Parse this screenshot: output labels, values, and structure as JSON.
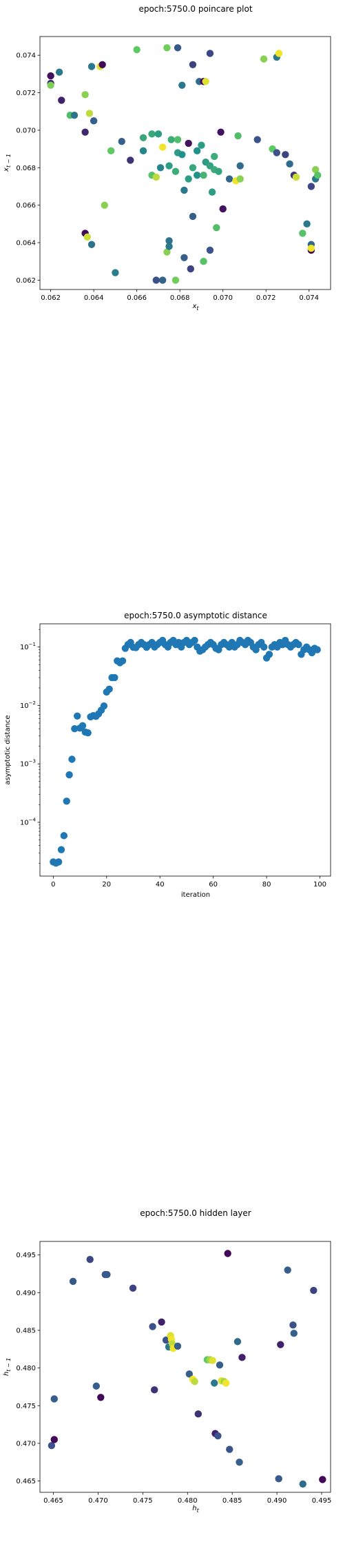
{
  "chart_data": [
    {
      "type": "scatter",
      "title": "epoch:5750.0 poincare plot",
      "xlabel": "x_t",
      "ylabel": "x_{t-1}",
      "xlim": [
        0.0615,
        0.075
      ],
      "ylim": [
        0.0615,
        0.075
      ],
      "xticks": [
        "0.062",
        "0.064",
        "0.066",
        "0.068",
        "0.070",
        "0.072",
        "0.074"
      ],
      "yticks": [
        "0.062",
        "0.064",
        "0.066",
        "0.068",
        "0.070",
        "0.072",
        "0.074"
      ],
      "colormap": "viridis",
      "points": [
        {
          "x": 0.062,
          "y": 0.0729,
          "c": 0.05
        },
        {
          "x": 0.062,
          "y": 0.0725,
          "c": 0.12
        },
        {
          "x": 0.062,
          "y": 0.0724,
          "c": 0.8
        },
        {
          "x": 0.0624,
          "y": 0.0731,
          "c": 0.4
        },
        {
          "x": 0.0625,
          "y": 0.0716,
          "c": 0.1
        },
        {
          "x": 0.0629,
          "y": 0.0708,
          "c": 0.7
        },
        {
          "x": 0.0631,
          "y": 0.0708,
          "c": 0.38
        },
        {
          "x": 0.0636,
          "y": 0.0719,
          "c": 0.82
        },
        {
          "x": 0.0636,
          "y": 0.0699,
          "c": 0.12
        },
        {
          "x": 0.0638,
          "y": 0.0709,
          "c": 0.9
        },
        {
          "x": 0.0639,
          "y": 0.0734,
          "c": 0.4
        },
        {
          "x": 0.064,
          "y": 0.0705,
          "c": 0.3
        },
        {
          "x": 0.0643,
          "y": 0.0734,
          "c": 0.95
        },
        {
          "x": 0.0644,
          "y": 0.0735,
          "c": 0.02
        },
        {
          "x": 0.0648,
          "y": 0.0689,
          "c": 0.75
        },
        {
          "x": 0.0653,
          "y": 0.0694,
          "c": 0.3
        },
        {
          "x": 0.0645,
          "y": 0.066,
          "c": 0.82
        },
        {
          "x": 0.0636,
          "y": 0.0645,
          "c": 0.02
        },
        {
          "x": 0.0637,
          "y": 0.0643,
          "c": 0.92
        },
        {
          "x": 0.0639,
          "y": 0.0639,
          "c": 0.38
        },
        {
          "x": 0.065,
          "y": 0.0624,
          "c": 0.42
        },
        {
          "x": 0.0657,
          "y": 0.0684,
          "c": 0.15
        },
        {
          "x": 0.066,
          "y": 0.0743,
          "c": 0.75
        },
        {
          "x": 0.0663,
          "y": 0.0696,
          "c": 0.6
        },
        {
          "x": 0.0663,
          "y": 0.0689,
          "c": 0.45
        },
        {
          "x": 0.0667,
          "y": 0.0698,
          "c": 0.6
        },
        {
          "x": 0.067,
          "y": 0.0698,
          "c": 0.55
        },
        {
          "x": 0.0672,
          "y": 0.0691,
          "c": 0.98
        },
        {
          "x": 0.0676,
          "y": 0.0695,
          "c": 0.62
        },
        {
          "x": 0.0679,
          "y": 0.0695,
          "c": 0.7
        },
        {
          "x": 0.0679,
          "y": 0.0688,
          "c": 0.55
        },
        {
          "x": 0.0674,
          "y": 0.0744,
          "c": 0.78
        },
        {
          "x": 0.0679,
          "y": 0.0744,
          "c": 0.28
        },
        {
          "x": 0.0681,
          "y": 0.0724,
          "c": 0.4
        },
        {
          "x": 0.0686,
          "y": 0.0735,
          "c": 0.2
        },
        {
          "x": 0.0689,
          "y": 0.0726,
          "c": 0.35
        },
        {
          "x": 0.0691,
          "y": 0.0726,
          "c": 0.02
        },
        {
          "x": 0.0692,
          "y": 0.0726,
          "c": 0.95
        },
        {
          "x": 0.0694,
          "y": 0.0741,
          "c": 0.22
        },
        {
          "x": 0.0667,
          "y": 0.0676,
          "c": 0.72
        },
        {
          "x": 0.0669,
          "y": 0.0675,
          "c": 0.9
        },
        {
          "x": 0.0671,
          "y": 0.068,
          "c": 0.45
        },
        {
          "x": 0.0675,
          "y": 0.0681,
          "c": 0.55
        },
        {
          "x": 0.0678,
          "y": 0.0678,
          "c": 0.62
        },
        {
          "x": 0.0681,
          "y": 0.0687,
          "c": 0.5
        },
        {
          "x": 0.0682,
          "y": 0.0668,
          "c": 0.4
        },
        {
          "x": 0.0684,
          "y": 0.0674,
          "c": 0.55
        },
        {
          "x": 0.0684,
          "y": 0.0693,
          "c": 0.05
        },
        {
          "x": 0.0686,
          "y": 0.068,
          "c": 0.6
        },
        {
          "x": 0.0688,
          "y": 0.0676,
          "c": 0.5
        },
        {
          "x": 0.0688,
          "y": 0.0689,
          "c": 0.5
        },
        {
          "x": 0.069,
          "y": 0.0692,
          "c": 0.55
        },
        {
          "x": 0.0691,
          "y": 0.0676,
          "c": 0.65
        },
        {
          "x": 0.0692,
          "y": 0.0683,
          "c": 0.55
        },
        {
          "x": 0.0694,
          "y": 0.0681,
          "c": 0.58
        },
        {
          "x": 0.0695,
          "y": 0.0667,
          "c": 0.55
        },
        {
          "x": 0.0696,
          "y": 0.0686,
          "c": 0.62
        },
        {
          "x": 0.0696,
          "y": 0.0679,
          "c": 0.62
        },
        {
          "x": 0.0698,
          "y": 0.0678,
          "c": 0.58
        },
        {
          "x": 0.0697,
          "y": 0.0648,
          "c": 0.7
        },
        {
          "x": 0.0699,
          "y": 0.0699,
          "c": 0.05
        },
        {
          "x": 0.07,
          "y": 0.0658,
          "c": 0.05
        },
        {
          "x": 0.0686,
          "y": 0.0654,
          "c": 0.3
        },
        {
          "x": 0.0691,
          "y": 0.063,
          "c": 0.72
        },
        {
          "x": 0.0694,
          "y": 0.0636,
          "c": 0.25
        },
        {
          "x": 0.0685,
          "y": 0.0626,
          "c": 0.2
        },
        {
          "x": 0.0682,
          "y": 0.0632,
          "c": 0.3
        },
        {
          "x": 0.0678,
          "y": 0.062,
          "c": 0.78
        },
        {
          "x": 0.0672,
          "y": 0.062,
          "c": 0.32
        },
        {
          "x": 0.0669,
          "y": 0.062,
          "c": 0.25
        },
        {
          "x": 0.0674,
          "y": 0.0635,
          "c": 0.82
        },
        {
          "x": 0.0675,
          "y": 0.0638,
          "c": 0.4
        },
        {
          "x": 0.0675,
          "y": 0.0641,
          "c": 0.38
        },
        {
          "x": 0.0703,
          "y": 0.0674,
          "c": 0.32
        },
        {
          "x": 0.0706,
          "y": 0.0673,
          "c": 0.98
        },
        {
          "x": 0.0707,
          "y": 0.0697,
          "c": 0.7
        },
        {
          "x": 0.0708,
          "y": 0.0681,
          "c": 0.35
        },
        {
          "x": 0.0708,
          "y": 0.0674,
          "c": 0.82
        },
        {
          "x": 0.0716,
          "y": 0.0695,
          "c": 0.25
        },
        {
          "x": 0.0719,
          "y": 0.0738,
          "c": 0.82
        },
        {
          "x": 0.0723,
          "y": 0.069,
          "c": 0.75
        },
        {
          "x": 0.0725,
          "y": 0.0688,
          "c": 0.25
        },
        {
          "x": 0.0725,
          "y": 0.0739,
          "c": 0.4
        },
        {
          "x": 0.0726,
          "y": 0.0741,
          "c": 0.98
        },
        {
          "x": 0.0729,
          "y": 0.0687,
          "c": 0.2
        },
        {
          "x": 0.0731,
          "y": 0.0682,
          "c": 0.35
        },
        {
          "x": 0.0733,
          "y": 0.0676,
          "c": 0.15
        },
        {
          "x": 0.0734,
          "y": 0.0675,
          "c": 0.92
        },
        {
          "x": 0.0737,
          "y": 0.0645,
          "c": 0.72
        },
        {
          "x": 0.0739,
          "y": 0.065,
          "c": 0.4
        },
        {
          "x": 0.0741,
          "y": 0.067,
          "c": 0.22
        },
        {
          "x": 0.0741,
          "y": 0.0639,
          "c": 0.35
        },
        {
          "x": 0.0741,
          "y": 0.0636,
          "c": 0.02
        },
        {
          "x": 0.0741,
          "y": 0.0637,
          "c": 0.98
        },
        {
          "x": 0.0743,
          "y": 0.0674,
          "c": 0.4
        },
        {
          "x": 0.0743,
          "y": 0.0679,
          "c": 0.82
        },
        {
          "x": 0.0744,
          "y": 0.0676,
          "c": 0.72
        }
      ]
    },
    {
      "type": "scatter",
      "title": "epoch:5750.0 asymptotic distance",
      "xlabel": "iteration",
      "ylabel": "asymptotic distance",
      "yscale": "log",
      "xlim": [
        -5,
        104
      ],
      "ylim": [
        1.2e-05,
        0.25
      ],
      "xticks": [
        "0",
        "20",
        "40",
        "60",
        "80",
        "100"
      ],
      "yticks": [
        {
          "base": "10",
          "exp": "−1",
          "v": 0.1
        },
        {
          "base": "10",
          "exp": "−2",
          "v": 0.01
        },
        {
          "base": "10",
          "exp": "−3",
          "v": 0.001
        },
        {
          "base": "10",
          "exp": "−4",
          "v": 0.0001
        }
      ],
      "color": "#1f77b4",
      "x": [
        0,
        1,
        2,
        3,
        4,
        5,
        6,
        7,
        8,
        9,
        10,
        11,
        12,
        13,
        14,
        15,
        16,
        17,
        18,
        19,
        20,
        21,
        22,
        23,
        24,
        25,
        26,
        27,
        28,
        29,
        30,
        31,
        32,
        33,
        34,
        35,
        36,
        37,
        38,
        39,
        40,
        41,
        42,
        43,
        44,
        45,
        46,
        47,
        48,
        49,
        50,
        51,
        52,
        53,
        54,
        55,
        56,
        57,
        58,
        59,
        60,
        61,
        62,
        63,
        64,
        65,
        66,
        67,
        68,
        69,
        70,
        71,
        72,
        73,
        74,
        75,
        76,
        77,
        78,
        79,
        80,
        81,
        82,
        83,
        84,
        85,
        86,
        87,
        88,
        89,
        90,
        91,
        92,
        93,
        94,
        95,
        96,
        97,
        98,
        99
      ],
      "y": [
        2.1e-05,
        2e-05,
        2.1e-05,
        3.4e-05,
        5.9e-05,
        0.00023,
        0.00065,
        0.0012,
        0.004,
        0.0066,
        0.0041,
        0.0045,
        0.0035,
        0.0034,
        0.0064,
        0.0067,
        0.0065,
        0.0072,
        0.0083,
        0.0098,
        0.017,
        0.019,
        0.03,
        0.03,
        0.058,
        0.054,
        0.058,
        0.095,
        0.11,
        0.12,
        0.099,
        0.098,
        0.11,
        0.12,
        0.11,
        0.099,
        0.11,
        0.12,
        0.1,
        0.11,
        0.12,
        0.13,
        0.11,
        0.1,
        0.12,
        0.13,
        0.11,
        0.12,
        0.1,
        0.12,
        0.13,
        0.11,
        0.12,
        0.13,
        0.1,
        0.085,
        0.09,
        0.1,
        0.11,
        0.12,
        0.11,
        0.095,
        0.09,
        0.11,
        0.12,
        0.11,
        0.1,
        0.12,
        0.1,
        0.11,
        0.13,
        0.12,
        0.11,
        0.13,
        0.12,
        0.1,
        0.09,
        0.11,
        0.12,
        0.1,
        0.065,
        0.075,
        0.1,
        0.11,
        0.1,
        0.12,
        0.11,
        0.13,
        0.11,
        0.1,
        0.11,
        0.12,
        0.11,
        0.075,
        0.09,
        0.1,
        0.09,
        0.08,
        0.095,
        0.09
      ]
    },
    {
      "type": "scatter",
      "title": "epoch:5750.0 hidden layer",
      "xlabel": "h_t",
      "ylabel": "h_{t-1}",
      "xlim": [
        0.4635,
        0.496
      ],
      "ylim": [
        0.4635,
        0.4968
      ],
      "xticks": [
        "0.465",
        "0.470",
        "0.475",
        "0.480",
        "0.485",
        "0.490",
        "0.495"
      ],
      "yticks": [
        "0.465",
        "0.470",
        "0.475",
        "0.480",
        "0.485",
        "0.490",
        "0.495"
      ],
      "colormap": "viridis",
      "points": [
        {
          "x": 0.4648,
          "y": 0.4697,
          "c": 0.25
        },
        {
          "x": 0.4651,
          "y": 0.4705,
          "c": 0.02
        },
        {
          "x": 0.4651,
          "y": 0.4759,
          "c": 0.3
        },
        {
          "x": 0.4672,
          "y": 0.4915,
          "c": 0.28
        },
        {
          "x": 0.4691,
          "y": 0.4944,
          "c": 0.22
        },
        {
          "x": 0.4698,
          "y": 0.4776,
          "c": 0.3
        },
        {
          "x": 0.4703,
          "y": 0.4761,
          "c": 0.02
        },
        {
          "x": 0.4708,
          "y": 0.4924,
          "c": 0.25
        },
        {
          "x": 0.471,
          "y": 0.4924,
          "c": 0.28
        },
        {
          "x": 0.4739,
          "y": 0.4906,
          "c": 0.2
        },
        {
          "x": 0.4761,
          "y": 0.4855,
          "c": 0.25
        },
        {
          "x": 0.4763,
          "y": 0.4771,
          "c": 0.15
        },
        {
          "x": 0.4771,
          "y": 0.4861,
          "c": 0.1
        },
        {
          "x": 0.4776,
          "y": 0.4837,
          "c": 0.25
        },
        {
          "x": 0.4779,
          "y": 0.4828,
          "c": 0.4
        },
        {
          "x": 0.4781,
          "y": 0.4843,
          "c": 0.95
        },
        {
          "x": 0.4782,
          "y": 0.4838,
          "c": 0.98
        },
        {
          "x": 0.4783,
          "y": 0.4832,
          "c": 0.9
        },
        {
          "x": 0.4784,
          "y": 0.4826,
          "c": 0.98
        },
        {
          "x": 0.4789,
          "y": 0.4829,
          "c": 0.3
        },
        {
          "x": 0.4802,
          "y": 0.4792,
          "c": 0.3
        },
        {
          "x": 0.4806,
          "y": 0.4785,
          "c": 0.98
        },
        {
          "x": 0.4808,
          "y": 0.4782,
          "c": 0.9
        },
        {
          "x": 0.4812,
          "y": 0.4739,
          "c": 0.15
        },
        {
          "x": 0.4822,
          "y": 0.4811,
          "c": 0.75
        },
        {
          "x": 0.4825,
          "y": 0.4811,
          "c": 0.85
        },
        {
          "x": 0.4828,
          "y": 0.481,
          "c": 0.95
        },
        {
          "x": 0.483,
          "y": 0.478,
          "c": 0.4
        },
        {
          "x": 0.4831,
          "y": 0.4713,
          "c": 0.1
        },
        {
          "x": 0.4834,
          "y": 0.471,
          "c": 0.25
        },
        {
          "x": 0.4836,
          "y": 0.4804,
          "c": 0.3
        },
        {
          "x": 0.4838,
          "y": 0.4783,
          "c": 0.95
        },
        {
          "x": 0.4841,
          "y": 0.4782,
          "c": 0.85
        },
        {
          "x": 0.4843,
          "y": 0.478,
          "c": 0.98
        },
        {
          "x": 0.4845,
          "y": 0.4952,
          "c": 0.02
        },
        {
          "x": 0.4847,
          "y": 0.4692,
          "c": 0.25
        },
        {
          "x": 0.4856,
          "y": 0.4835,
          "c": 0.35
        },
        {
          "x": 0.4858,
          "y": 0.4675,
          "c": 0.3
        },
        {
          "x": 0.4861,
          "y": 0.4814,
          "c": 0.1
        },
        {
          "x": 0.4902,
          "y": 0.4653,
          "c": 0.28
        },
        {
          "x": 0.4904,
          "y": 0.4831,
          "c": 0.1
        },
        {
          "x": 0.4912,
          "y": 0.493,
          "c": 0.3
        },
        {
          "x": 0.4918,
          "y": 0.4857,
          "c": 0.25
        },
        {
          "x": 0.4919,
          "y": 0.4846,
          "c": 0.3
        },
        {
          "x": 0.4929,
          "y": 0.4646,
          "c": 0.35
        },
        {
          "x": 0.4941,
          "y": 0.4903,
          "c": 0.2
        },
        {
          "x": 0.4951,
          "y": 0.4652,
          "c": 0.02
        }
      ]
    }
  ]
}
